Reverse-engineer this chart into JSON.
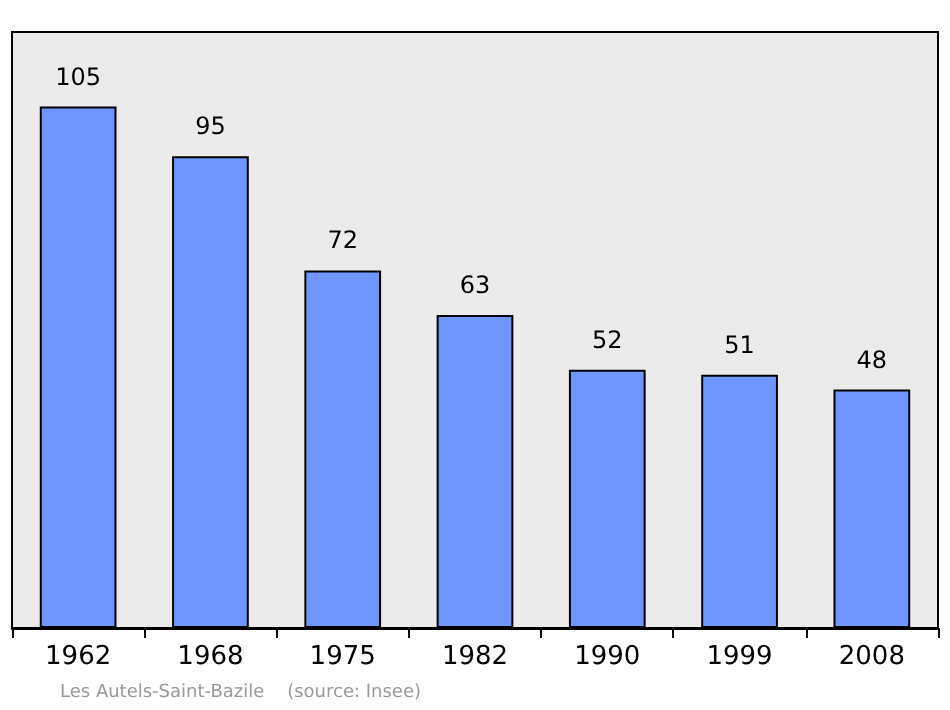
{
  "chart_data": {
    "type": "bar",
    "categories": [
      "1962",
      "1968",
      "1975",
      "1982",
      "1990",
      "1999",
      "2008"
    ],
    "values": [
      105,
      95,
      72,
      63,
      52,
      51,
      48
    ],
    "color": "#6f96ff",
    "data_labels": true,
    "annotations": [
      "Les Autels-Saint-Bazile    (source: Insee)"
    ]
  }
}
